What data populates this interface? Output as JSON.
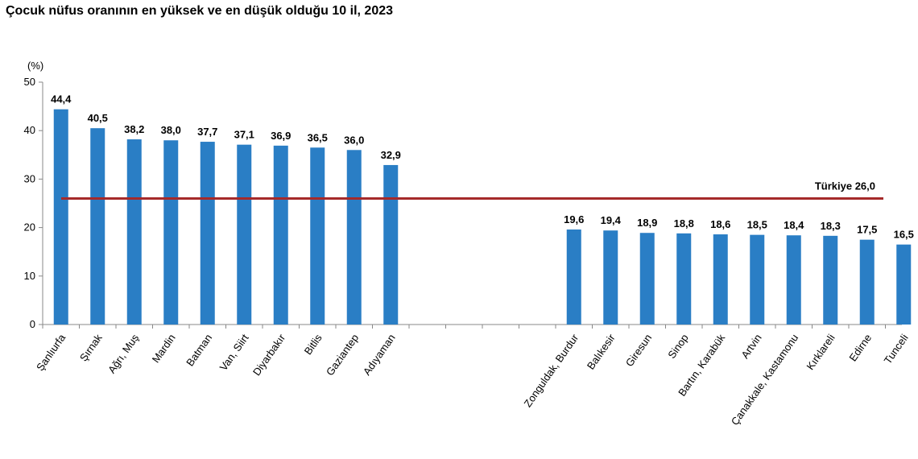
{
  "chart_data": {
    "type": "bar",
    "title": "Çocuk nüfus oranının en yüksek ve en düşük olduğu 10 il, 2023",
    "ylabel": "(%)",
    "ylim": [
      0,
      50
    ],
    "yticks": [
      0,
      10,
      20,
      30,
      40,
      50
    ],
    "grid": false,
    "bar_color": "#2a7ec5",
    "groups": [
      {
        "categories": [
          "Şanlıurfa",
          "Şırnak",
          "Ağrı, Muş",
          "Mardin",
          "Batman",
          "Van, Siirt",
          "Diyarbakır",
          "Bitlis",
          "Gaziantep",
          "Adıyaman"
        ],
        "values": [
          44.4,
          40.5,
          38.2,
          38.0,
          37.7,
          37.1,
          36.9,
          36.5,
          36.0,
          32.9
        ],
        "labels": [
          "44,4",
          "40,5",
          "38,2",
          "38,0",
          "37,7",
          "37,1",
          "36,9",
          "36,5",
          "36,0",
          "32,9"
        ]
      },
      {
        "categories": [
          "Zonguldak, Burdur",
          "Balıkesir",
          "Giresun",
          "Sinop",
          "Bartın, Karabük",
          "Artvin",
          "Çanakkale, Kastamonu",
          "Kırklareli",
          "Edirne",
          "Tunceli"
        ],
        "values": [
          19.6,
          19.4,
          18.9,
          18.8,
          18.6,
          18.5,
          18.4,
          18.3,
          17.5,
          16.5
        ],
        "labels": [
          "19,6",
          "19,4",
          "18,9",
          "18,8",
          "18,6",
          "18,5",
          "18,4",
          "18,3",
          "17,5",
          "16,5"
        ]
      }
    ],
    "reference_line": {
      "value": 26.0,
      "label": "Türkiye 26,0",
      "color": "#a52a2a"
    }
  }
}
